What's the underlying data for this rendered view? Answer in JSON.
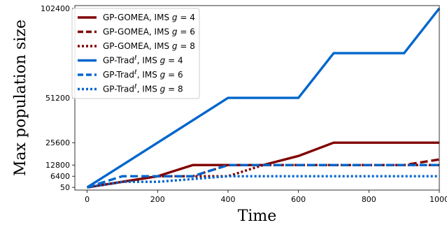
{
  "chart_data": {
    "type": "line",
    "xlabel": "Time",
    "ylabel": "Max population size",
    "xlim": [
      -35,
      1000
    ],
    "ylim": [
      -1500,
      104000
    ],
    "x_ticks": [
      0,
      200,
      400,
      600,
      800,
      1000
    ],
    "x_tick_labels": [
      "0",
      "200",
      "400",
      "600",
      "800",
      "1000"
    ],
    "y_ticks": [
      50,
      6400,
      12800,
      25600,
      51200,
      102400
    ],
    "y_tick_labels": [
      "50",
      "6400",
      "12800",
      "25600",
      "51200",
      "102400"
    ],
    "legend_position": "top-left",
    "series": [
      {
        "name": "GP-GOMEA, IMS g = 4",
        "legend_prefix": "GP-GOMEA, IMS ",
        "legend_g": "4",
        "color": "#800000",
        "dash": "solid",
        "x": [
          0,
          100,
          200,
          300,
          400,
          500,
          600,
          700,
          800,
          900,
          1000
        ],
        "y": [
          50,
          3200,
          6400,
          12800,
          12800,
          12800,
          18000,
          25600,
          25600,
          25600,
          25600
        ]
      },
      {
        "name": "GP-GOMEA, IMS g = 6",
        "legend_prefix": "GP-GOMEA, IMS ",
        "legend_g": "6",
        "color": "#800000",
        "dash": "dashed",
        "x": [
          0,
          100,
          200,
          300,
          400,
          500,
          600,
          700,
          800,
          900,
          1000
        ],
        "y": [
          50,
          3200,
          6400,
          6400,
          12800,
          12800,
          12800,
          12800,
          12800,
          12800,
          16000
        ]
      },
      {
        "name": "GP-GOMEA, IMS g = 8",
        "legend_prefix": "GP-GOMEA, IMS ",
        "legend_g": "8",
        "color": "#800000",
        "dash": "dotted",
        "x": [
          0,
          100,
          200,
          300,
          400,
          500,
          600,
          700,
          800,
          900,
          1000
        ],
        "y": [
          50,
          3200,
          6400,
          6400,
          6400,
          12800,
          12800,
          12800,
          12800,
          12800,
          12800
        ]
      },
      {
        "name": "GP-Tradℓ, IMS g = 4",
        "legend_prefix": "GP-Trad",
        "legend_g": "4",
        "color": "#0066CC",
        "dash": "solid",
        "x": [
          0,
          100,
          200,
          300,
          400,
          500,
          600,
          700,
          800,
          900,
          1000
        ],
        "y": [
          50,
          12800,
          25600,
          38400,
          51200,
          51200,
          51200,
          76800,
          76800,
          76800,
          102400
        ]
      },
      {
        "name": "GP-Tradℓ, IMS g = 6",
        "legend_prefix": "GP-Trad",
        "legend_g": "6",
        "color": "#0066CC",
        "dash": "dashed",
        "x": [
          0,
          100,
          200,
          300,
          400,
          500,
          600,
          700,
          800,
          900,
          1000
        ],
        "y": [
          50,
          6400,
          6400,
          6400,
          12800,
          12800,
          12800,
          12800,
          12800,
          12800,
          12800
        ]
      },
      {
        "name": "GP-Tradℓ, IMS g = 8",
        "legend_prefix": "GP-Trad",
        "legend_g": "8",
        "color": "#0066CC",
        "dash": "dotted",
        "x": [
          0,
          100,
          200,
          300,
          400,
          500,
          600,
          700,
          800,
          900,
          1000
        ],
        "y": [
          50,
          3200,
          3200,
          4800,
          6400,
          6400,
          6400,
          6400,
          6400,
          6400,
          6400
        ]
      }
    ]
  }
}
